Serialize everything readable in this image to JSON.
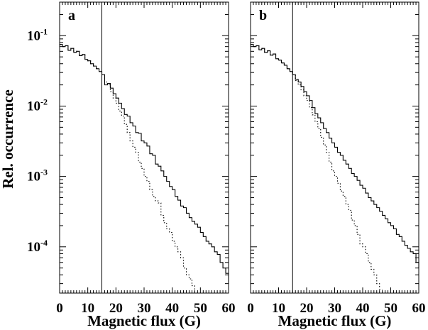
{
  "chart_data": {
    "type": "line",
    "ylabel": "Rel. occurrence",
    "yscale": "log",
    "y_tick_labels": [
      {
        "base": "10",
        "exp": "-1",
        "value": 0.1
      },
      {
        "base": "10",
        "exp": "-2",
        "value": 0.01
      },
      {
        "base": "10",
        "exp": "-3",
        "value": 0.001
      },
      {
        "base": "10",
        "exp": "-4",
        "value": 0.0001
      }
    ],
    "ylim": [
      2.2e-05,
      0.3
    ],
    "panels": [
      {
        "label": "a",
        "xlabel": "Magnetic flux (G)",
        "xlim": [
          0,
          60
        ],
        "x_ticks": [
          0,
          10,
          20,
          30,
          40,
          50,
          60
        ],
        "vline_x": 15,
        "series": [
          {
            "style": "solid",
            "x": [
              0,
              1,
              2,
              3,
              4,
              5,
              6,
              7,
              8,
              9,
              10,
              11,
              12,
              13,
              14,
              15,
              16,
              17,
              18,
              19,
              20,
              21,
              22,
              23,
              24,
              25,
              26,
              27,
              28,
              29,
              30,
              31,
              32,
              33,
              34,
              35,
              36,
              37,
              38,
              39,
              40,
              41,
              42,
              43,
              44,
              45,
              46,
              47,
              48,
              49,
              50,
              51,
              52,
              53,
              54,
              55,
              56,
              57,
              58,
              59,
              60
            ],
            "values": [
              0.075,
              0.07,
              0.072,
              0.062,
              0.066,
              0.058,
              0.06,
              0.052,
              0.054,
              0.046,
              0.044,
              0.04,
              0.037,
              0.034,
              0.031,
              0.028,
              0.02,
              0.021,
              0.018,
              0.015,
              0.013,
              0.011,
              0.0092,
              0.0076,
              0.0072,
              0.0058,
              0.0052,
              0.0042,
              0.0041,
              0.0032,
              0.003,
              0.0027,
              0.0021,
              0.002,
              0.0015,
              0.0014,
              0.0012,
              0.001,
              0.00085,
              0.00072,
              0.00065,
              0.00052,
              0.00046,
              0.00038,
              0.00036,
              0.0003,
              0.00026,
              0.00023,
              0.00021,
              0.00019,
              0.00016,
              0.00014,
              0.00012,
              0.00011,
              0.0001,
              8.5e-05,
              7.8e-05,
              6e-05,
              5e-05,
              4.2e-05,
              3e-05
            ]
          },
          {
            "style": "dotted",
            "x": [
              0,
              1,
              2,
              3,
              4,
              5,
              6,
              7,
              8,
              9,
              10,
              11,
              12,
              13,
              14,
              15,
              16,
              17,
              18,
              19,
              20,
              21,
              22,
              23,
              24,
              25,
              26,
              27,
              28,
              29,
              30,
              31,
              32,
              33,
              34,
              35,
              36,
              37,
              38,
              39,
              40,
              41,
              42,
              43,
              44,
              45,
              46,
              47,
              48
            ],
            "values": [
              0.075,
              0.07,
              0.072,
              0.062,
              0.066,
              0.058,
              0.06,
              0.052,
              0.054,
              0.046,
              0.044,
              0.04,
              0.037,
              0.034,
              0.031,
              0.028,
              0.022,
              0.02,
              0.016,
              0.013,
              0.011,
              0.0085,
              0.0072,
              0.0055,
              0.0042,
              0.0032,
              0.0026,
              0.0022,
              0.0016,
              0.0013,
              0.001,
              0.00085,
              0.00065,
              0.00052,
              0.00045,
              0.00042,
              0.00028,
              0.00022,
              0.00018,
              0.00016,
              0.00012,
              0.0001,
              8.5e-05,
              7e-05,
              5e-05,
              4e-05,
              3.5e-05,
              2.8e-05,
              2.2e-05
            ]
          }
        ]
      },
      {
        "label": "b",
        "xlabel": "Magnetic flux (G)",
        "xlim": [
          0,
          60
        ],
        "x_ticks": [
          0,
          10,
          20,
          30,
          40,
          50,
          60
        ],
        "vline_x": 15,
        "series": [
          {
            "style": "solid",
            "x": [
              0,
              1,
              2,
              3,
              4,
              5,
              6,
              7,
              8,
              9,
              10,
              11,
              12,
              13,
              14,
              15,
              16,
              17,
              18,
              19,
              20,
              21,
              22,
              23,
              24,
              25,
              26,
              27,
              28,
              29,
              30,
              31,
              32,
              33,
              34,
              35,
              36,
              37,
              38,
              39,
              40,
              41,
              42,
              43,
              44,
              45,
              46,
              47,
              48,
              49,
              50,
              51,
              52,
              53,
              54,
              55,
              56,
              57,
              58,
              59,
              60
            ],
            "values": [
              0.075,
              0.07,
              0.072,
              0.063,
              0.066,
              0.058,
              0.061,
              0.053,
              0.055,
              0.047,
              0.045,
              0.041,
              0.038,
              0.034,
              0.031,
              0.028,
              0.024,
              0.022,
              0.019,
              0.016,
              0.014,
              0.012,
              0.0095,
              0.0078,
              0.0068,
              0.0058,
              0.0048,
              0.0042,
              0.0035,
              0.003,
              0.0026,
              0.0022,
              0.002,
              0.0017,
              0.0015,
              0.0013,
              0.0011,
              0.001,
              0.00088,
              0.00075,
              0.00068,
              0.00058,
              0.0005,
              0.00045,
              0.0004,
              0.00036,
              0.00032,
              0.00028,
              0.00025,
              0.00022,
              0.0002,
              0.00018,
              0.00015,
              0.00014,
              0.00012,
              0.000105,
              9.5e-05,
              8.5e-05,
              8e-05,
              6e-05,
              5e-05
            ]
          },
          {
            "style": "dotted",
            "x": [
              0,
              1,
              2,
              3,
              4,
              5,
              6,
              7,
              8,
              9,
              10,
              11,
              12,
              13,
              14,
              15,
              16,
              17,
              18,
              19,
              20,
              21,
              22,
              23,
              24,
              25,
              26,
              27,
              28,
              29,
              30,
              31,
              32,
              33,
              34,
              35,
              36,
              37,
              38,
              39,
              40,
              41,
              42,
              43,
              44,
              45,
              46
            ],
            "values": [
              0.075,
              0.07,
              0.072,
              0.063,
              0.066,
              0.058,
              0.061,
              0.053,
              0.055,
              0.047,
              0.045,
              0.041,
              0.038,
              0.034,
              0.031,
              0.028,
              0.023,
              0.02,
              0.017,
              0.014,
              0.012,
              0.0095,
              0.0075,
              0.006,
              0.0048,
              0.0036,
              0.0028,
              0.0022,
              0.0016,
              0.0012,
              0.001,
              0.0008,
              0.00062,
              0.00052,
              0.0004,
              0.00033,
              0.00024,
              0.0002,
              0.00015,
              0.00011,
              0.0001,
              8e-05,
              6e-05,
              4.8e-05,
              4e-05,
              3e-05,
              2.5e-05
            ]
          }
        ]
      }
    ]
  }
}
